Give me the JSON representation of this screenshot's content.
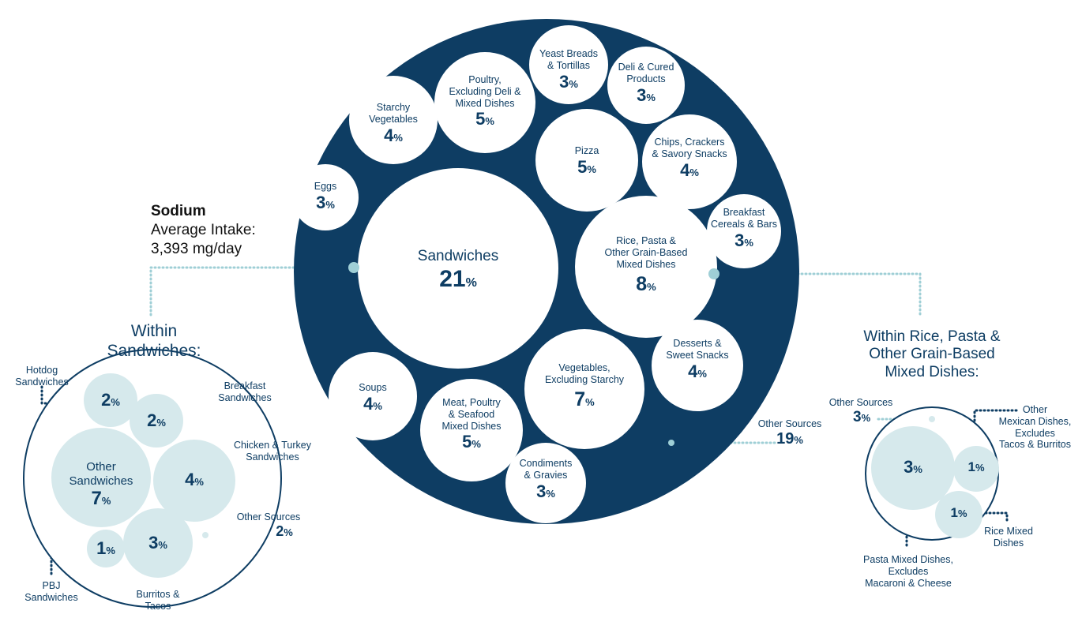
{
  "summary": {
    "title": "Sodium",
    "line1": "Average Intake:",
    "line2": "3,393 mg/day"
  },
  "colors": {
    "dark": "#0e3d63",
    "light": "#d6e9ec",
    "dotted": "#9fcfd6"
  },
  "main": {
    "bubbles": [
      {
        "id": "sandwiches",
        "label": "Sandwiches",
        "value": "21",
        "unit": "%"
      },
      {
        "id": "eggs",
        "label": "Eggs",
        "value": "3",
        "unit": "%"
      },
      {
        "id": "starchy",
        "label": "Starchy\nVegetables",
        "value": "4",
        "unit": "%"
      },
      {
        "id": "poultry",
        "label": "Poultry,\nExcluding Deli &\nMixed Dishes",
        "value": "5",
        "unit": "%"
      },
      {
        "id": "yeast",
        "label": "Yeast Breads\n& Tortillas",
        "value": "3",
        "unit": "%"
      },
      {
        "id": "deli",
        "label": "Deli & Cured\nProducts",
        "value": "3",
        "unit": "%"
      },
      {
        "id": "pizza",
        "label": "Pizza",
        "value": "5",
        "unit": "%"
      },
      {
        "id": "chips",
        "label": "Chips, Crackers\n& Savory Snacks",
        "value": "4",
        "unit": "%"
      },
      {
        "id": "cereals",
        "label": "Breakfast\nCereals & Bars",
        "value": "3",
        "unit": "%"
      },
      {
        "id": "rice",
        "label": "Rice, Pasta &\nOther Grain-Based\nMixed Dishes",
        "value": "8",
        "unit": "%"
      },
      {
        "id": "desserts",
        "label": "Desserts &\nSweet Snacks",
        "value": "4",
        "unit": "%"
      },
      {
        "id": "vegetables",
        "label": "Vegetables,\nExcluding Starchy",
        "value": "7",
        "unit": "%"
      },
      {
        "id": "soups",
        "label": "Soups",
        "value": "4",
        "unit": "%"
      },
      {
        "id": "meat",
        "label": "Meat, Poultry\n& Seafood\nMixed Dishes",
        "value": "5",
        "unit": "%"
      },
      {
        "id": "condiments",
        "label": "Condiments\n& Gravies",
        "value": "3",
        "unit": "%"
      }
    ],
    "other": {
      "label": "Other Sources",
      "value": "19",
      "unit": "%"
    }
  },
  "sandwiches_breakdown": {
    "heading": "Within\nSandwiches:",
    "bubbles": [
      {
        "id": "hotdog",
        "label": "Hotdog\nSandwiches",
        "value": "2",
        "unit": "%"
      },
      {
        "id": "breakfast",
        "label": "Breakfast\nSandwiches",
        "value": "2",
        "unit": "%"
      },
      {
        "id": "other_sandwiches",
        "label": "Other\nSandwiches",
        "value": "7",
        "unit": "%"
      },
      {
        "id": "chicken",
        "label": "Chicken & Turkey\nSandwiches",
        "value": "4",
        "unit": "%"
      },
      {
        "id": "pbj",
        "label": "PBJ\nSandwiches",
        "value": "1",
        "unit": "%"
      },
      {
        "id": "burritos",
        "label": "Burritos &\nTacos",
        "value": "3",
        "unit": "%"
      }
    ],
    "other": {
      "label": "Other Sources",
      "value": "2",
      "unit": "%"
    }
  },
  "rice_breakdown": {
    "heading": "Within Rice, Pasta &\nOther Grain-Based\nMixed Dishes:",
    "bubbles": [
      {
        "id": "pasta",
        "label": "Pasta Mixed Dishes,\nExcludes\nMacaroni & Cheese",
        "value": "3",
        "unit": "%"
      },
      {
        "id": "mexican",
        "label": "Other\nMexican Dishes,\nExcludes\nTacos & Burritos",
        "value": "1",
        "unit": "%"
      },
      {
        "id": "rice_mixed",
        "label": "Rice Mixed\nDishes",
        "value": "1",
        "unit": "%"
      }
    ],
    "other": {
      "label": "Other Sources",
      "value": "3",
      "unit": "%"
    }
  }
}
